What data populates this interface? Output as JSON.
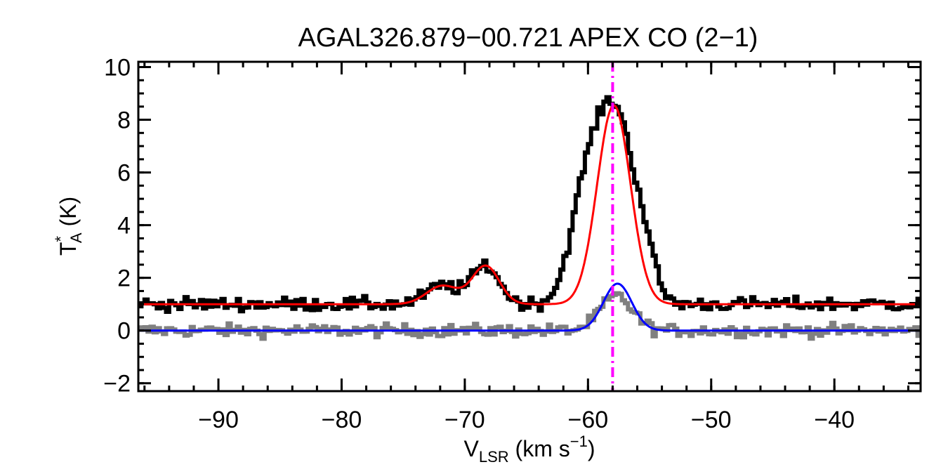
{
  "chart_data": {
    "type": "line",
    "title": "AGAL326.879−00.721   APEX CO (2−1)",
    "xlabel": {
      "main": "V",
      "sub": "LSR",
      "unit_pre": " (km s",
      "sup": "−1",
      "unit_post": ")"
    },
    "ylabel": {
      "main": "T",
      "sup": "*",
      "sub": "A",
      "unit": " (K)"
    },
    "xlim": [
      -96.5,
      -33
    ],
    "ylim": [
      -2.3,
      10.2
    ],
    "x_ticks": [
      -90,
      -80,
      -70,
      -60,
      -50,
      -40
    ],
    "x_tick_labels": [
      "−90",
      "−80",
      "−70",
      "−60",
      "−50",
      "−40"
    ],
    "y_ticks": [
      -2,
      0,
      2,
      4,
      6,
      8,
      10
    ],
    "y_tick_labels": [
      "−2",
      "0",
      "2",
      "4",
      "6",
      "8",
      "10"
    ],
    "x_minor_step": 2,
    "y_minor_step": 0.5,
    "vline": {
      "x": -58.0,
      "color": "#ff00ff",
      "style": "dash-dot"
    },
    "series": [
      {
        "name": "observed spectrum",
        "color": "#000000",
        "style": "histogram",
        "baseline": 1.0,
        "noise": 0.18,
        "x_start": -96.5,
        "x_end": -33,
        "channel_width": 0.25,
        "components": [
          {
            "amp": 0.7,
            "center": -71.8,
            "width": 1.3
          },
          {
            "amp": 1.45,
            "center": -68.3,
            "width": 1.1
          },
          {
            "amp": 3.6,
            "center": -60.2,
            "width": 1.3
          },
          {
            "amp": 7.0,
            "center": -57.7,
            "width": 1.55
          },
          {
            "amp": 1.0,
            "center": -55.3,
            "width": 0.8
          }
        ]
      },
      {
        "name": "residual spectrum",
        "color": "#808080",
        "style": "histogram",
        "baseline": 0.0,
        "noise": 0.17,
        "x_start": -96.5,
        "x_end": -33,
        "channel_width": 0.25,
        "components": [
          {
            "amp": 1.3,
            "center": -57.7,
            "width": 1.3
          }
        ]
      },
      {
        "name": "red gaussian fit",
        "color": "#ff0000",
        "style": "line",
        "baseline": 1.0,
        "components": [
          {
            "amp": 0.7,
            "center": -71.8,
            "width": 1.3
          },
          {
            "amp": 1.45,
            "center": -68.3,
            "width": 1.1
          },
          {
            "amp": 7.55,
            "center": -57.9,
            "width": 1.35
          }
        ]
      },
      {
        "name": "blue gaussian fit",
        "color": "#0000ff",
        "style": "line",
        "baseline": 0.0,
        "components": [
          {
            "amp": 1.78,
            "center": -57.6,
            "width": 1.15
          }
        ]
      }
    ]
  }
}
